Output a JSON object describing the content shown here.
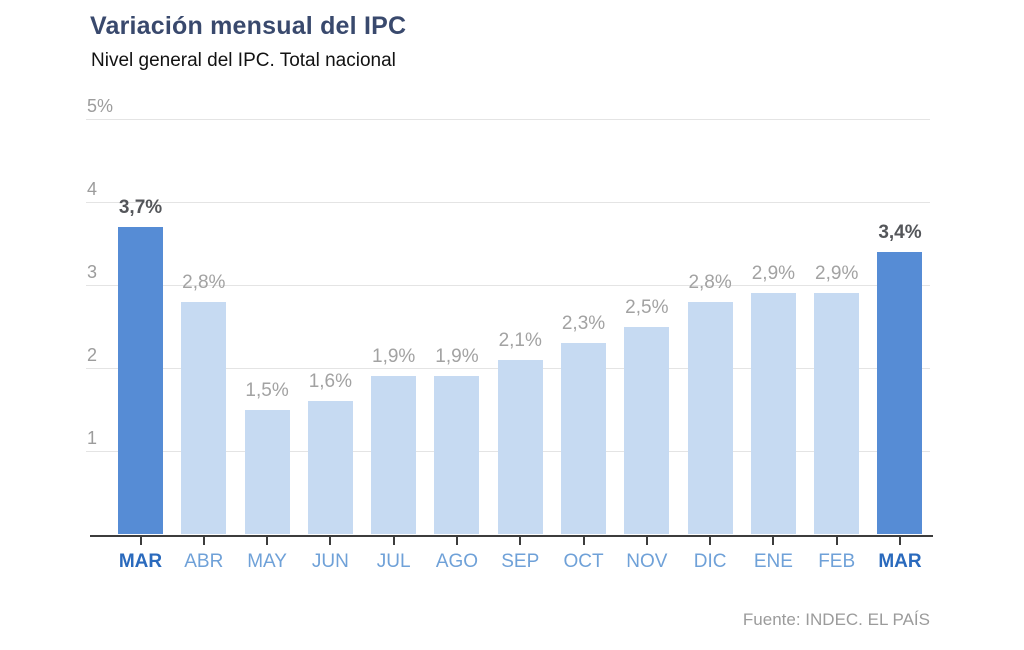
{
  "header": {
    "title": "Variación mensual del IPC",
    "subtitle": "Nivel general del IPC. Total nacional"
  },
  "footer": {
    "source": "Fuente: INDEC. EL PAÍS"
  },
  "colors": {
    "bar_light": "#c6daf2",
    "bar_highlight": "#568cd5",
    "title": "#39496d",
    "axis_line": "#3c3c3c",
    "gridline": "#e4e4e4",
    "y_label": "#9c9c9c",
    "value_label": "#a2a2a2",
    "value_label_highlight": "#54565a",
    "x_label": "#6fa1d8",
    "x_label_highlight": "#2a6abd",
    "source": "#9b9b9b"
  },
  "chart_data": {
    "type": "bar",
    "title": "Variación mensual del IPC",
    "subtitle": "Nivel general del IPC. Total nacional",
    "categories": [
      "MAR",
      "ABR",
      "MAY",
      "JUN",
      "JUL",
      "AGO",
      "SEP",
      "OCT",
      "NOV",
      "DIC",
      "ENE",
      "FEB",
      "MAR"
    ],
    "values": [
      3.7,
      2.8,
      1.5,
      1.6,
      1.9,
      1.9,
      2.1,
      2.3,
      2.5,
      2.8,
      2.9,
      2.9,
      3.4
    ],
    "value_labels": [
      "3,7%",
      "2,8%",
      "1,5%",
      "1,6%",
      "1,9%",
      "1,9%",
      "2,1%",
      "2,3%",
      "2,5%",
      "2,8%",
      "2,9%",
      "2,9%",
      "3,4%"
    ],
    "highlighted_indexes": [
      0,
      12
    ],
    "yticks": [
      {
        "value": 5,
        "label": "5%"
      },
      {
        "value": 4,
        "label": "4"
      },
      {
        "value": 3,
        "label": "3"
      },
      {
        "value": 2,
        "label": "2"
      },
      {
        "value": 1,
        "label": "1"
      }
    ],
    "ylim": [
      0,
      5
    ],
    "xlabel": "",
    "ylabel": "",
    "grid": true,
    "legend": false,
    "source": "Fuente: INDEC. EL PAÍS"
  }
}
